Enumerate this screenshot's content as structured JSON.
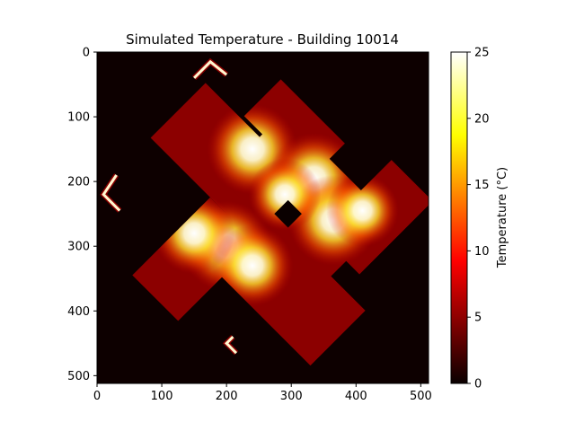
{
  "chart_data": {
    "type": "heatmap",
    "title": "Simulated Temperature - Building 10014",
    "x_ticks": [
      0,
      100,
      200,
      300,
      400,
      500
    ],
    "y_ticks": [
      0,
      100,
      200,
      300,
      400,
      500
    ],
    "xlim": [
      0,
      512
    ],
    "ylim": [
      512,
      0
    ],
    "colorbar": {
      "label": "Temperature (°C)",
      "ticks": [
        0,
        5,
        10,
        15,
        20,
        25
      ],
      "range": [
        0,
        25
      ],
      "colormap": "hot"
    },
    "colors": {
      "background": "#0d0000",
      "wall_base": "#8c0000",
      "hot_center": "#ffffff"
    },
    "building_blocks": [
      {
        "name": "upper-left-wing",
        "center": [
          210,
          175
        ],
        "width": 120,
        "length": 240,
        "angle": 45
      },
      {
        "name": "upper-right-wing",
        "center": [
          305,
          120
        ],
        "width": 80,
        "length": 140,
        "angle": 45
      },
      {
        "name": "center-core",
        "center": [
          320,
          225
        ],
        "width": 140,
        "length": 230,
        "angle": 45
      },
      {
        "name": "east-wing",
        "center": [
          430,
          255
        ],
        "width": 90,
        "length": 160,
        "angle": -45
      },
      {
        "name": "south-wing",
        "center": [
          280,
          350
        ],
        "width": 120,
        "length": 260,
        "angle": 45
      },
      {
        "name": "west-lower-wing",
        "center": [
          150,
          320
        ],
        "width": 100,
        "length": 170,
        "angle": -45
      }
    ],
    "hotspots": [
      {
        "center": [
          240,
          150
        ],
        "intensity": 1.0
      },
      {
        "center": [
          335,
          195
        ],
        "intensity": 1.0
      },
      {
        "center": [
          365,
          260
        ],
        "intensity": 1.0
      },
      {
        "center": [
          200,
          300
        ],
        "intensity": 1.0
      },
      {
        "center": [
          240,
          330
        ],
        "intensity": 0.9
      },
      {
        "center": [
          410,
          245
        ],
        "intensity": 0.8
      },
      {
        "center": [
          150,
          280
        ],
        "intensity": 0.9
      },
      {
        "center": [
          290,
          220
        ],
        "intensity": 0.8
      }
    ],
    "cold_spot": {
      "center": [
        295,
        250
      ],
      "size": 30
    },
    "wall_segments": [
      [
        [
          150,
          40
        ],
        [
          175,
          15
        ],
        [
          200,
          35
        ]
      ],
      [
        [
          30,
          190
        ],
        [
          10,
          220
        ],
        [
          35,
          245
        ]
      ],
      [
        [
          210,
          440
        ],
        [
          200,
          450
        ],
        [
          215,
          465
        ]
      ]
    ]
  }
}
